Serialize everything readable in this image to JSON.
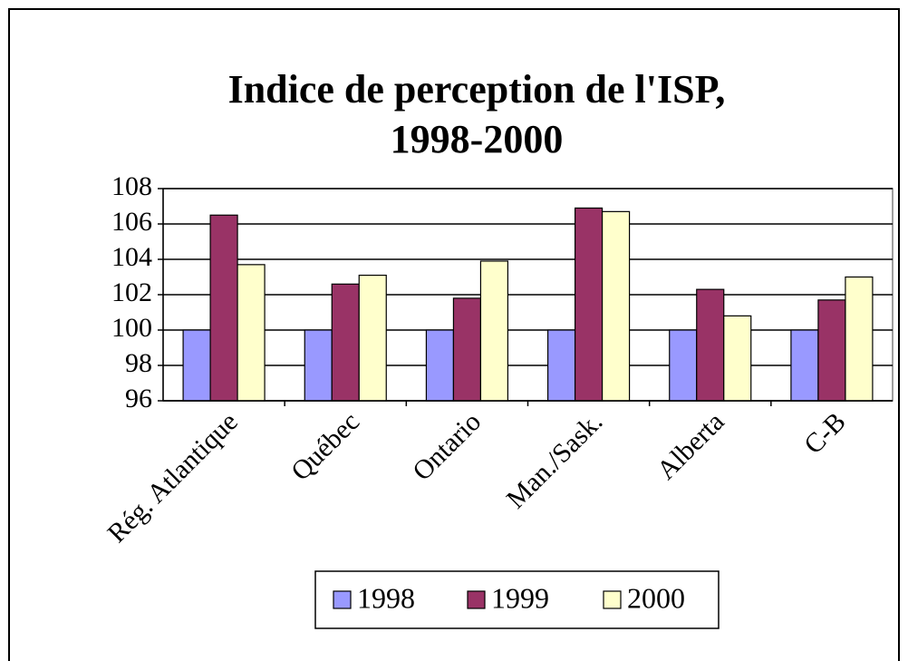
{
  "chart_data": {
    "type": "bar",
    "title": [
      "Indice de perception de l'ISP,",
      "1998-2000"
    ],
    "categories": [
      "Rég. Atlantique",
      "Québec",
      "Ontario",
      "Man./Sask.",
      "Alberta",
      "C-B"
    ],
    "series": [
      {
        "name": "1998",
        "color": "#9999ff",
        "values": [
          100,
          100,
          100,
          100,
          100,
          100
        ]
      },
      {
        "name": "1999",
        "color": "#993366",
        "values": [
          106.5,
          102.6,
          101.8,
          106.9,
          102.3,
          101.7
        ]
      },
      {
        "name": "2000",
        "color": "#ffffcc",
        "values": [
          103.7,
          103.1,
          103.9,
          106.7,
          100.8,
          103.0
        ]
      }
    ],
    "ylim": [
      96,
      108
    ],
    "yticks": [
      96,
      98,
      100,
      102,
      104,
      106,
      108
    ],
    "grid": true,
    "legend": "bottom"
  }
}
